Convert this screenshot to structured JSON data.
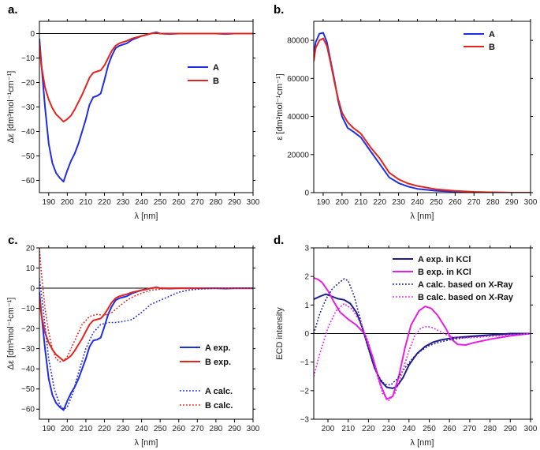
{
  "colors": {
    "blue": "#1f2ee6",
    "red": "#e3251e",
    "navy": "#1c1c8c",
    "magenta": "#e61ee6"
  },
  "chart_data": [
    {
      "type": "line",
      "panel_label": "a.",
      "xlabel": "λ [nm]",
      "ylabel": "Δε [dm³mol⁻¹cm⁻¹]",
      "xlim": [
        185,
        300
      ],
      "ylim": [
        -65,
        5
      ],
      "xticks": [
        190,
        200,
        210,
        220,
        230,
        240,
        250,
        260,
        270,
        280,
        290,
        300
      ],
      "yticks": [
        0,
        -10,
        -20,
        -30,
        -40,
        -50,
        -60
      ],
      "zero_line": true,
      "legend": "top-right",
      "series": [
        {
          "name": "A",
          "color": "blue",
          "dash": "solid",
          "x": [
            185,
            186,
            188,
            190,
            192,
            194,
            196,
            198,
            200,
            202,
            204,
            206,
            208,
            210,
            212,
            214,
            216,
            218,
            220,
            222,
            224,
            226,
            228,
            230,
            232,
            235,
            240,
            245,
            248,
            250,
            255,
            260,
            270,
            280,
            285,
            290,
            300
          ],
          "y": [
            -2,
            -12,
            -30,
            -45,
            -53,
            -57,
            -59,
            -60.5,
            -56,
            -52,
            -49,
            -45,
            -40,
            -35,
            -29,
            -26,
            -25.5,
            -24.5,
            -19,
            -13,
            -9,
            -6,
            -5,
            -4.5,
            -4,
            -2.5,
            -1,
            0,
            0.5,
            0,
            -0.2,
            0,
            0,
            0,
            -0.2,
            0,
            0
          ]
        },
        {
          "name": "B",
          "color": "red",
          "dash": "solid",
          "x": [
            185,
            186,
            188,
            190,
            192,
            194,
            196,
            198,
            200,
            202,
            204,
            206,
            208,
            210,
            212,
            214,
            216,
            218,
            220,
            222,
            224,
            226,
            228,
            230,
            232,
            235,
            240,
            245,
            248,
            250,
            255,
            260,
            270,
            280,
            285,
            290,
            300
          ],
          "y": [
            -4,
            -13,
            -22,
            -27,
            -30.5,
            -33,
            -34.5,
            -36,
            -35,
            -33.5,
            -31,
            -28,
            -25,
            -21.5,
            -18,
            -16,
            -15.5,
            -15,
            -13,
            -10,
            -7,
            -5,
            -4,
            -3.5,
            -3,
            -2,
            -1,
            0,
            0.3,
            0,
            0,
            0,
            0,
            0,
            0,
            0,
            0
          ]
        }
      ]
    },
    {
      "type": "line",
      "panel_label": "b.",
      "xlabel": "λ [nm]",
      "ylabel": "ε [dm³mol⁻¹cm⁻¹]",
      "xlim": [
        185,
        300
      ],
      "ylim": [
        0,
        90000
      ],
      "xticks": [
        190,
        200,
        210,
        220,
        230,
        240,
        250,
        260,
        270,
        280,
        290,
        300
      ],
      "yticks": [
        0,
        20000,
        40000,
        60000,
        80000
      ],
      "zero_line": false,
      "legend": "top-right",
      "series": [
        {
          "name": "A",
          "color": "blue",
          "dash": "solid",
          "x": [
            185,
            186,
            188,
            190,
            192,
            194,
            196,
            198,
            200,
            203,
            206,
            210,
            215,
            220,
            225,
            230,
            235,
            240,
            250,
            260,
            270,
            280,
            290,
            300
          ],
          "y": [
            72000,
            79000,
            83500,
            84000,
            79000,
            69000,
            59000,
            48000,
            40000,
            34000,
            32000,
            29000,
            22000,
            15000,
            8000,
            5000,
            3200,
            2000,
            1000,
            500,
            200,
            100,
            0,
            0
          ]
        },
        {
          "name": "B",
          "color": "red",
          "dash": "solid",
          "x": [
            185,
            186,
            188,
            190,
            192,
            194,
            196,
            198,
            200,
            203,
            206,
            210,
            215,
            220,
            225,
            230,
            235,
            240,
            250,
            260,
            270,
            280,
            290,
            300
          ],
          "y": [
            69000,
            76000,
            80000,
            81000,
            77000,
            68000,
            58000,
            49000,
            42000,
            37000,
            34000,
            31000,
            24000,
            18000,
            10500,
            7000,
            4800,
            3500,
            1800,
            900,
            400,
            150,
            0,
            0
          ]
        }
      ]
    },
    {
      "type": "line",
      "panel_label": "c.",
      "xlabel": "λ [nm]",
      "ylabel": "Δε [dm³mol⁻¹cm⁻¹]",
      "xlim": [
        185,
        300
      ],
      "ylim": [
        -65,
        20
      ],
      "xticks": [
        190,
        200,
        210,
        220,
        230,
        240,
        250,
        260,
        270,
        280,
        290,
        300
      ],
      "yticks": [
        20,
        10,
        0,
        -10,
        -20,
        -30,
        -40,
        -50,
        -60
      ],
      "zero_line": true,
      "legend": "right",
      "series": [
        {
          "name": "A exp.",
          "color": "blue",
          "dash": "solid",
          "x": [
            185,
            186,
            188,
            190,
            192,
            194,
            196,
            198,
            200,
            202,
            204,
            206,
            208,
            210,
            212,
            214,
            216,
            218,
            220,
            222,
            224,
            226,
            228,
            230,
            232,
            235,
            240,
            245,
            248,
            250,
            255,
            260,
            270,
            280,
            285,
            290,
            300
          ],
          "y": [
            -2,
            -12,
            -30,
            -45,
            -53,
            -57,
            -59,
            -60.5,
            -56,
            -52,
            -49,
            -45,
            -40,
            -35,
            -29,
            -26,
            -25.5,
            -24.5,
            -19,
            -13,
            -9,
            -6,
            -5,
            -4.5,
            -4,
            -2.5,
            -1,
            0,
            0.5,
            0,
            -0.2,
            0,
            0,
            0,
            -0.2,
            0,
            0
          ]
        },
        {
          "name": "B exp.",
          "color": "red",
          "dash": "solid",
          "x": [
            185,
            186,
            188,
            190,
            192,
            194,
            196,
            198,
            200,
            202,
            204,
            206,
            208,
            210,
            212,
            214,
            216,
            218,
            220,
            222,
            224,
            226,
            228,
            230,
            232,
            235,
            240,
            245,
            248,
            250,
            255,
            260,
            270,
            280,
            285,
            290,
            300
          ],
          "y": [
            -4,
            -13,
            -22,
            -27,
            -30.5,
            -33,
            -34.5,
            -36,
            -35,
            -33.5,
            -31,
            -28,
            -25,
            -21.5,
            -18,
            -16,
            -15.5,
            -15,
            -13,
            -10,
            -7,
            -5,
            -4,
            -3.5,
            -3,
            -2,
            -1,
            0,
            0.3,
            0,
            0,
            0,
            0,
            0,
            0,
            0,
            0
          ]
        },
        {
          "name": "A calc.",
          "color": "blue",
          "dash": "dotted",
          "x": [
            185,
            187,
            190,
            193,
            196,
            198,
            200,
            203,
            206,
            210,
            214,
            218,
            222,
            226,
            230,
            235,
            240,
            245,
            250,
            255,
            260,
            265,
            270,
            280,
            290,
            300
          ],
          "y": [
            5,
            -10,
            -35,
            -50,
            -58,
            -60,
            -59,
            -52,
            -42,
            -30,
            -22,
            -18,
            -17,
            -17,
            -16.5,
            -15.5,
            -12,
            -8,
            -6,
            -4,
            -2,
            -1,
            -0.5,
            0,
            0,
            0
          ]
        },
        {
          "name": "B calc.",
          "color": "red",
          "dash": "dotted",
          "x": [
            185,
            186,
            188,
            190,
            192,
            194,
            196,
            198,
            200,
            204,
            208,
            212,
            216,
            220,
            224,
            228,
            232,
            236,
            240,
            245,
            250,
            255,
            260,
            270,
            280,
            290,
            300
          ],
          "y": [
            20,
            8,
            -10,
            -22,
            -30,
            -35,
            -36.5,
            -36,
            -34,
            -26,
            -18,
            -14,
            -13,
            -13.5,
            -12,
            -9,
            -6,
            -4,
            -2.5,
            -1,
            -0.5,
            0,
            0,
            0,
            0,
            0,
            0
          ]
        }
      ]
    },
    {
      "type": "line",
      "panel_label": "d.",
      "xlabel": "λ [nm]",
      "ylabel": "ECD intensity",
      "xlim": [
        193,
        300
      ],
      "ylim": [
        -3,
        3
      ],
      "xticks": [
        200,
        210,
        220,
        230,
        240,
        250,
        260,
        270,
        280,
        290,
        300
      ],
      "yticks": [
        3,
        2,
        1,
        0,
        -1,
        -2,
        -3
      ],
      "zero_line": true,
      "legend": "top-right",
      "series": [
        {
          "name": "A exp. in KCl",
          "color": "navy",
          "dash": "solid",
          "x": [
            193,
            196,
            199,
            202,
            205,
            208,
            211,
            214,
            217,
            220,
            223,
            226,
            229,
            232,
            234,
            237,
            240,
            244,
            248,
            252,
            256,
            262,
            270,
            280,
            290,
            300
          ],
          "y": [
            1.2,
            1.3,
            1.38,
            1.3,
            1.22,
            1.18,
            1.05,
            0.75,
            0.2,
            -0.5,
            -1.2,
            -1.65,
            -1.88,
            -1.92,
            -1.85,
            -1.55,
            -1.1,
            -0.7,
            -0.45,
            -0.3,
            -0.22,
            -0.15,
            -0.1,
            -0.05,
            0,
            0
          ]
        },
        {
          "name": "B exp. in KCl",
          "color": "magenta",
          "dash": "solid",
          "x": [
            193,
            195,
            197,
            200,
            203,
            206,
            210,
            214,
            218,
            222,
            226,
            229,
            232,
            235,
            238,
            241,
            245,
            248,
            251,
            254,
            258,
            261,
            264,
            268,
            272,
            280,
            290,
            300
          ],
          "y": [
            1.95,
            1.9,
            1.8,
            1.5,
            1.1,
            0.75,
            0.5,
            0.3,
            0.0,
            -0.8,
            -1.8,
            -2.3,
            -2.2,
            -1.5,
            -0.5,
            0.3,
            0.8,
            0.95,
            0.88,
            0.65,
            0.2,
            -0.2,
            -0.38,
            -0.4,
            -0.32,
            -0.2,
            -0.08,
            0
          ]
        },
        {
          "name": "A calc. based on X-Ray",
          "color": "navy",
          "dash": "dotted",
          "x": [
            193,
            196,
            199,
            202,
            205,
            208,
            210,
            213,
            216,
            219,
            222,
            225,
            228,
            231,
            234,
            238,
            242,
            246,
            250,
            255,
            260,
            270,
            280,
            290,
            300
          ],
          "y": [
            0,
            0.7,
            1.2,
            1.55,
            1.75,
            1.92,
            1.85,
            1.3,
            0.5,
            -0.3,
            -1.0,
            -1.5,
            -1.78,
            -1.8,
            -1.6,
            -1.2,
            -0.85,
            -0.6,
            -0.42,
            -0.3,
            -0.22,
            -0.12,
            -0.06,
            -0.02,
            0
          ]
        },
        {
          "name": "B calc. based on X-Ray",
          "color": "magenta",
          "dash": "dotted",
          "x": [
            193,
            196,
            200,
            204,
            208,
            212,
            216,
            220,
            224,
            227,
            230,
            233,
            236,
            240,
            243,
            246,
            249,
            252,
            256,
            260,
            265,
            270,
            280,
            290,
            300
          ],
          "y": [
            -1.5,
            -0.7,
            0.2,
            0.8,
            1.05,
            0.85,
            0.4,
            -0.3,
            -1.4,
            -2.1,
            -2.35,
            -2.1,
            -1.5,
            -0.6,
            -0.05,
            0.2,
            0.25,
            0.2,
            0.05,
            -0.1,
            -0.15,
            -0.15,
            -0.1,
            -0.05,
            0
          ]
        }
      ]
    }
  ]
}
